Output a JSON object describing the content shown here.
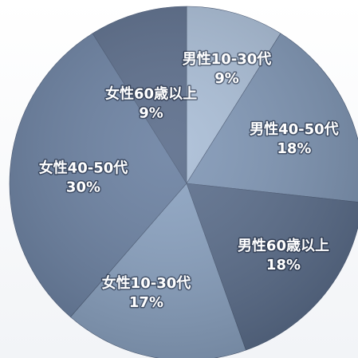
{
  "chart_data": {
    "type": "pie",
    "title": "",
    "slices": [
      {
        "label": "男性10-30代",
        "value_label": "9%",
        "value": 9,
        "color": "#a9bdd6"
      },
      {
        "label": "男性40-50代",
        "value_label": "18%",
        "value": 18,
        "color": "#7f96b5"
      },
      {
        "label": "男性60歳以上",
        "value_label": "18%",
        "value": 18,
        "color": "#5b6e8c"
      },
      {
        "label": "女性10-30代",
        "value_label": "17%",
        "value": 17,
        "color": "#8aa2c1"
      },
      {
        "label": "女性40-50代",
        "value_label": "30%",
        "value": 30,
        "color": "#6a80a1"
      },
      {
        "label": "女性60歳以上",
        "value_label": "9%",
        "value": 9,
        "color": "#5a6c8a"
      }
    ],
    "start_angle_deg": 0,
    "direction": "clockwise",
    "legend": "none"
  }
}
